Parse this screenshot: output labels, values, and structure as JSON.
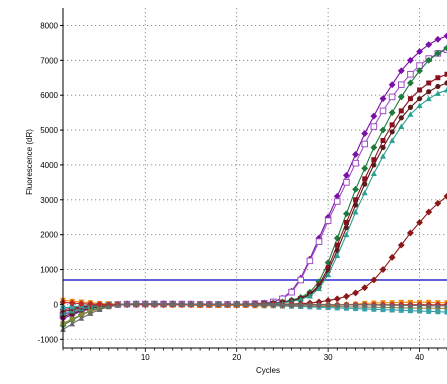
{
  "chart_data": {
    "type": "line",
    "title": "",
    "xlabel": "Cycles",
    "ylabel": "Fluorescence (dR)",
    "xlim": [
      1,
      43
    ],
    "ylim": [
      -1250,
      8500
    ],
    "xticks": [
      10,
      20,
      30,
      40
    ],
    "yticks": [
      -1000,
      0,
      1000,
      2000,
      3000,
      4000,
      5000,
      6000,
      7000,
      8000
    ],
    "grid": true,
    "legend": "none",
    "threshold": {
      "value": 700,
      "color": "#2a2ad6"
    },
    "series": [
      {
        "color": "#7a10a8",
        "marker": "diamond",
        "x": [
          1,
          2,
          3,
          4,
          5,
          6,
          7,
          8,
          9,
          10,
          11,
          12,
          13,
          14,
          15,
          16,
          17,
          18,
          19,
          20,
          21,
          22,
          23,
          24,
          25,
          26,
          27,
          28,
          29,
          30,
          31,
          32,
          33,
          34,
          35,
          36,
          37,
          38,
          39,
          40,
          41,
          42,
          43
        ],
        "y": [
          -400,
          -300,
          -200,
          -120,
          -60,
          -20,
          0,
          10,
          20,
          20,
          20,
          20,
          20,
          10,
          10,
          10,
          10,
          0,
          0,
          0,
          10,
          20,
          40,
          80,
          180,
          380,
          750,
          1300,
          1900,
          2500,
          3100,
          3700,
          4300,
          4900,
          5400,
          5900,
          6300,
          6700,
          7000,
          7250,
          7450,
          7600,
          7700
        ]
      },
      {
        "color": "#a04ec4",
        "marker": "square-open",
        "x": [
          1,
          2,
          3,
          4,
          5,
          6,
          7,
          8,
          9,
          10,
          11,
          12,
          13,
          14,
          15,
          16,
          17,
          18,
          19,
          20,
          21,
          22,
          23,
          24,
          25,
          26,
          27,
          28,
          29,
          30,
          31,
          32,
          33,
          34,
          35,
          36,
          37,
          38,
          39,
          40,
          41,
          42,
          43
        ],
        "y": [
          -300,
          -220,
          -150,
          -90,
          -40,
          -10,
          0,
          10,
          10,
          10,
          10,
          10,
          10,
          10,
          10,
          0,
          0,
          0,
          0,
          0,
          10,
          20,
          30,
          70,
          160,
          350,
          700,
          1250,
          1800,
          2400,
          2950,
          3500,
          4050,
          4600,
          5100,
          5550,
          5950,
          6300,
          6600,
          6850,
          7050,
          7200,
          7300
        ]
      },
      {
        "color": "#1e7a3c",
        "marker": "diamond",
        "x": [
          1,
          2,
          3,
          4,
          5,
          6,
          7,
          8,
          9,
          10,
          11,
          12,
          13,
          14,
          15,
          16,
          17,
          18,
          19,
          20,
          21,
          22,
          23,
          24,
          25,
          26,
          27,
          28,
          29,
          30,
          31,
          32,
          33,
          34,
          35,
          36,
          37,
          38,
          39,
          40,
          41,
          42,
          43
        ],
        "y": [
          -600,
          -450,
          -300,
          -180,
          -90,
          -40,
          -10,
          0,
          10,
          10,
          10,
          10,
          10,
          0,
          0,
          0,
          0,
          0,
          0,
          0,
          0,
          10,
          20,
          40,
          70,
          120,
          200,
          350,
          650,
          1200,
          1900,
          2600,
          3300,
          3900,
          4500,
          5000,
          5500,
          5950,
          6350,
          6700,
          7000,
          7200,
          7350
        ]
      },
      {
        "color": "#8a1020",
        "marker": "square",
        "x": [
          1,
          2,
          3,
          4,
          5,
          6,
          7,
          8,
          9,
          10,
          11,
          12,
          13,
          14,
          15,
          16,
          17,
          18,
          19,
          20,
          21,
          22,
          23,
          24,
          25,
          26,
          27,
          28,
          29,
          30,
          31,
          32,
          33,
          34,
          35,
          36,
          37,
          38,
          39,
          40,
          41,
          42,
          43
        ],
        "y": [
          -200,
          -150,
          -100,
          -60,
          -30,
          -10,
          0,
          0,
          10,
          10,
          10,
          10,
          0,
          0,
          0,
          0,
          0,
          0,
          0,
          0,
          0,
          10,
          20,
          30,
          60,
          100,
          170,
          300,
          550,
          1050,
          1700,
          2350,
          3000,
          3600,
          4150,
          4700,
          5150,
          5550,
          5900,
          6150,
          6350,
          6500,
          6600
        ]
      },
      {
        "color": "#5a1a1a",
        "marker": "circle",
        "x": [
          1,
          2,
          3,
          4,
          5,
          6,
          7,
          8,
          9,
          10,
          11,
          12,
          13,
          14,
          15,
          16,
          17,
          18,
          19,
          20,
          21,
          22,
          23,
          24,
          25,
          26,
          27,
          28,
          29,
          30,
          31,
          32,
          33,
          34,
          35,
          36,
          37,
          38,
          39,
          40,
          41,
          42,
          43
        ],
        "y": [
          -350,
          -260,
          -180,
          -110,
          -60,
          -20,
          0,
          0,
          10,
          10,
          10,
          0,
          0,
          0,
          0,
          0,
          0,
          0,
          0,
          0,
          0,
          10,
          15,
          30,
          55,
          95,
          160,
          280,
          500,
          950,
          1550,
          2200,
          2850,
          3450,
          4000,
          4500,
          4950,
          5350,
          5650,
          5900,
          6100,
          6250,
          6350
        ]
      },
      {
        "color": "#2aa090",
        "marker": "triangle",
        "x": [
          1,
          2,
          3,
          4,
          5,
          6,
          7,
          8,
          9,
          10,
          11,
          12,
          13,
          14,
          15,
          16,
          17,
          18,
          19,
          20,
          21,
          22,
          23,
          24,
          25,
          26,
          27,
          28,
          29,
          30,
          31,
          32,
          33,
          34,
          35,
          36,
          37,
          38,
          39,
          40,
          41,
          42,
          43
        ],
        "y": [
          -250,
          -190,
          -130,
          -80,
          -40,
          -15,
          0,
          0,
          10,
          10,
          0,
          0,
          0,
          0,
          0,
          0,
          0,
          0,
          0,
          0,
          0,
          5,
          10,
          25,
          45,
          80,
          140,
          240,
          450,
          850,
          1400,
          2000,
          2650,
          3200,
          3750,
          4250,
          4700,
          5100,
          5450,
          5700,
          5900,
          6050,
          6150
        ]
      },
      {
        "color": "#8a1818",
        "marker": "diamond",
        "x": [
          1,
          2,
          3,
          4,
          5,
          6,
          7,
          8,
          9,
          10,
          11,
          12,
          13,
          14,
          15,
          16,
          17,
          18,
          19,
          20,
          21,
          22,
          23,
          24,
          25,
          26,
          27,
          28,
          29,
          30,
          31,
          32,
          33,
          34,
          35,
          36,
          37,
          38,
          39,
          40,
          41,
          42,
          43
        ],
        "y": [
          -150,
          -110,
          -70,
          -40,
          -20,
          -10,
          0,
          0,
          0,
          0,
          0,
          0,
          0,
          0,
          0,
          0,
          0,
          0,
          0,
          0,
          0,
          0,
          0,
          0,
          5,
          10,
          20,
          40,
          70,
          110,
          160,
          230,
          330,
          480,
          700,
          1000,
          1350,
          1700,
          2050,
          2350,
          2650,
          2900,
          3100
        ]
      },
      {
        "color": "#f08a18",
        "marker": "square",
        "x": [
          1,
          2,
          3,
          4,
          5,
          6,
          7,
          8,
          9,
          10,
          11,
          12,
          13,
          14,
          15,
          16,
          17,
          18,
          19,
          20,
          21,
          22,
          23,
          24,
          25,
          26,
          27,
          28,
          29,
          30,
          31,
          32,
          33,
          34,
          35,
          36,
          37,
          38,
          39,
          40,
          41,
          42,
          43
        ],
        "y": [
          120,
          90,
          70,
          50,
          30,
          20,
          10,
          0,
          -10,
          -10,
          -10,
          -20,
          -20,
          -20,
          -20,
          -30,
          -30,
          -30,
          -30,
          -30,
          -30,
          -40,
          -40,
          -40,
          -50,
          -50,
          -50,
          -50,
          -50,
          -40,
          -30,
          -10,
          10,
          30,
          40,
          50,
          50,
          60,
          60,
          60,
          60,
          50,
          50
        ]
      },
      {
        "color": "#888838",
        "marker": "square",
        "x": [
          1,
          2,
          3,
          4,
          5,
          6,
          7,
          8,
          9,
          10,
          11,
          12,
          13,
          14,
          15,
          16,
          17,
          18,
          19,
          20,
          21,
          22,
          23,
          24,
          25,
          26,
          27,
          28,
          29,
          30,
          31,
          32,
          33,
          34,
          35,
          36,
          37,
          38,
          39,
          40,
          41,
          42,
          43
        ],
        "y": [
          -550,
          -420,
          -300,
          -200,
          -120,
          -60,
          -20,
          0,
          10,
          10,
          10,
          0,
          0,
          0,
          0,
          0,
          -10,
          -10,
          -10,
          -10,
          -10,
          -20,
          -20,
          -20,
          -30,
          -30,
          -40,
          -40,
          -50,
          -60,
          -60,
          -70,
          -70,
          -80,
          -80,
          -90,
          -90,
          -100,
          -100,
          -110,
          -110,
          -110,
          -120
        ]
      },
      {
        "color": "#3aa0a8",
        "marker": "square",
        "x": [
          1,
          2,
          3,
          4,
          5,
          6,
          7,
          8,
          9,
          10,
          11,
          12,
          13,
          14,
          15,
          16,
          17,
          18,
          19,
          20,
          21,
          22,
          23,
          24,
          25,
          26,
          27,
          28,
          29,
          30,
          31,
          32,
          33,
          34,
          35,
          36,
          37,
          38,
          39,
          40,
          41,
          42,
          43
        ],
        "y": [
          -100,
          -70,
          -40,
          -20,
          -10,
          0,
          0,
          0,
          0,
          0,
          0,
          0,
          0,
          0,
          0,
          0,
          0,
          0,
          0,
          0,
          0,
          -10,
          -20,
          -30,
          -40,
          -50,
          -60,
          -70,
          -80,
          -90,
          -100,
          -110,
          -120,
          -130,
          -140,
          -150,
          -160,
          -170,
          -180,
          -190,
          -200,
          -210,
          -220
        ]
      },
      {
        "color": "#c02828",
        "marker": "diamond",
        "x": [
          1,
          2,
          3,
          4,
          5,
          6,
          7,
          8,
          9,
          10,
          11,
          12,
          13,
          14,
          15,
          16,
          17,
          18,
          19,
          20,
          21,
          22,
          23,
          24,
          25,
          26,
          27,
          28,
          29,
          30,
          31,
          32,
          33,
          34,
          35,
          36,
          37,
          38,
          39,
          40,
          41,
          42,
          43
        ],
        "y": [
          60,
          40,
          20,
          10,
          0,
          -10,
          -10,
          -10,
          -10,
          -10,
          -10,
          -10,
          -10,
          -10,
          -10,
          -10,
          -10,
          -10,
          -10,
          -10,
          -10,
          -10,
          -10,
          -10,
          -10,
          -10,
          -10,
          -10,
          -10,
          -10,
          -10,
          -10,
          -10,
          -10,
          -10,
          -10,
          -10,
          -10,
          -10,
          -10,
          -10,
          -10,
          -10
        ]
      },
      {
        "color": "#6a6a6a",
        "marker": "triangle",
        "x": [
          1,
          2,
          3,
          4,
          5,
          6,
          7,
          8,
          9,
          10,
          11,
          12,
          13,
          14,
          15,
          16,
          17,
          18,
          19,
          20,
          21,
          22,
          23,
          24,
          25,
          26,
          27,
          28,
          29,
          30,
          31,
          32,
          33,
          34,
          35,
          36,
          37,
          38,
          39,
          40,
          41,
          42,
          43
        ],
        "y": [
          -720,
          -560,
          -400,
          -260,
          -150,
          -70,
          -20,
          0,
          10,
          10,
          10,
          10,
          0,
          0,
          0,
          0,
          0,
          0,
          0,
          0,
          0,
          0,
          0,
          0,
          0,
          0,
          0,
          0,
          0,
          0,
          -10,
          -10,
          -10,
          -10,
          -20,
          -20,
          -20,
          -30,
          -30,
          -30,
          -40,
          -40,
          -40
        ]
      }
    ]
  }
}
